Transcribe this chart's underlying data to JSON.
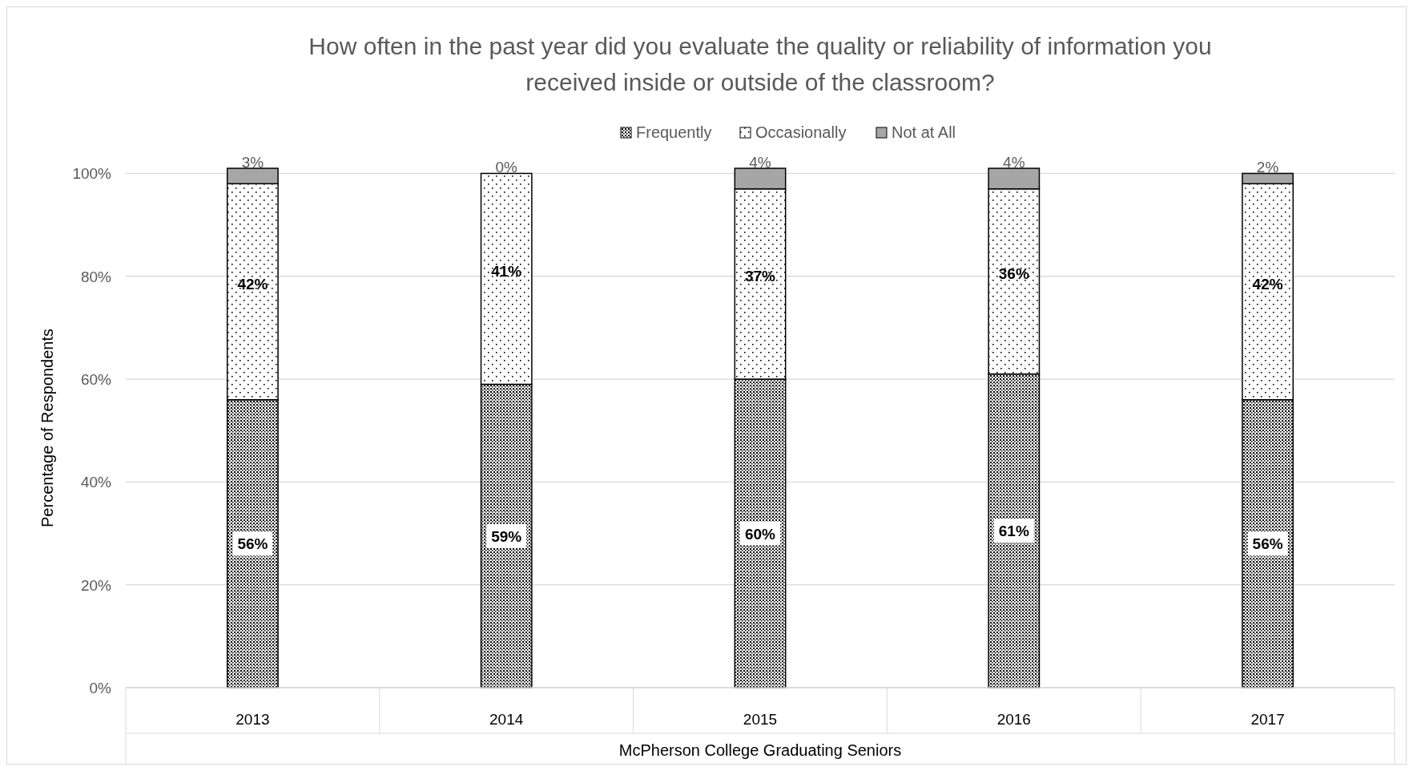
{
  "chart_data": {
    "type": "bar",
    "stacked": true,
    "title": "How often in the past year did you evaluate the quality or reliability of information you received inside or outside of the classroom?",
    "xlabel": "McPherson College Graduating Seniors",
    "ylabel": "Percentage of Respondents",
    "categories": [
      "2013",
      "2014",
      "2015",
      "2016",
      "2017"
    ],
    "series": [
      {
        "name": "Frequently",
        "color": "#000000",
        "values": [
          56,
          59,
          60,
          61,
          56
        ],
        "value_labels": [
          "56%",
          "59%",
          "60%",
          "61%",
          "56%"
        ]
      },
      {
        "name": "Occasionally",
        "color": "#000000",
        "values": [
          42,
          41,
          37,
          36,
          42
        ],
        "value_labels": [
          "42%",
          "41%",
          "37%",
          "36%",
          "42%"
        ]
      },
      {
        "name": "Not at All",
        "color": "#a6a6a6",
        "values": [
          3,
          0,
          4,
          4,
          2
        ],
        "value_labels": [
          "3%",
          "0%",
          "4%",
          "4%",
          "2%"
        ]
      }
    ],
    "ylim": [
      0,
      101
    ],
    "yticks": [
      {
        "value": 0,
        "label": "0%"
      },
      {
        "value": 20,
        "label": "20%"
      },
      {
        "value": 40,
        "label": "40%"
      },
      {
        "value": 60,
        "label": "60%"
      },
      {
        "value": 80,
        "label": "80%"
      },
      {
        "value": 100,
        "label": "100%"
      }
    ],
    "grid": "y",
    "legend": "top"
  }
}
